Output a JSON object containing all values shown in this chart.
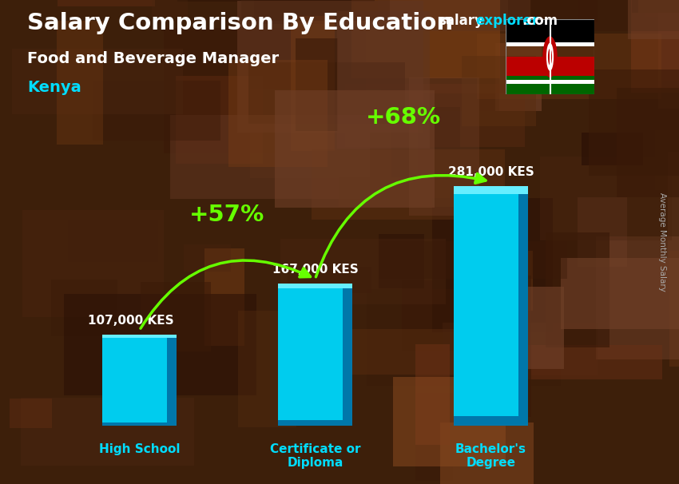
{
  "title_main": "Salary Comparison By Education",
  "subtitle1": "Food and Beverage Manager",
  "subtitle2": "Kenya",
  "categories": [
    "High School",
    "Certificate or\nDiploma",
    "Bachelor's\nDegree"
  ],
  "values": [
    107000,
    167000,
    281000
  ],
  "value_labels": [
    "107,000 KES",
    "167,000 KES",
    "281,000 KES"
  ],
  "pct_labels": [
    "+57%",
    "+68%"
  ],
  "bar_color_face": "#00ccee",
  "bar_color_dark": "#0077aa",
  "bar_color_light": "#66eeff",
  "background_color": "#3d1f0a",
  "title_color": "#ffffff",
  "subtitle1_color": "#ffffff",
  "subtitle2_color": "#00ddff",
  "category_label_color": "#00ddff",
  "value_label_color": "#ffffff",
  "pct_color": "#66ff00",
  "arrow_color": "#66ff00",
  "brand_salary_color": "#ffffff",
  "brand_explorer_color": "#00ddff",
  "ylabel_color": "#aaaaaa",
  "ylim": [
    0,
    340000
  ],
  "bar_width": 0.42,
  "figsize": [
    8.5,
    6.06
  ],
  "dpi": 100,
  "xlim": [
    -0.6,
    2.8
  ]
}
